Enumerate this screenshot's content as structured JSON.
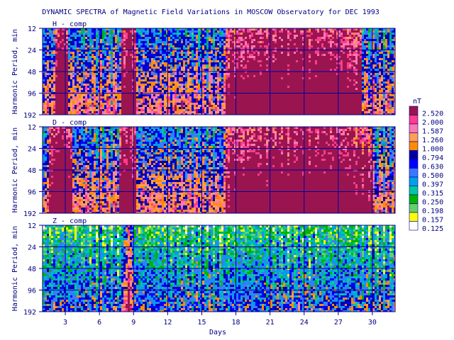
{
  "title": "DYNAMIC SPECTRA of Magnetic Field Variations in MOSCOW Observatory for DEC 1993",
  "chart_data": [
    {
      "type": "heatmap",
      "panel_label": "H - comp",
      "ylabel": "Harmonic Period, min",
      "y_ticks": [
        "12",
        "24",
        "48",
        "96",
        "192"
      ],
      "x_range": [
        1,
        32
      ],
      "scale": "log2 period",
      "storm_days": [
        [
          2.0,
          3.2
        ],
        [
          7.8,
          9.1
        ],
        [
          17,
          29
        ]
      ],
      "intensity": "high"
    },
    {
      "type": "heatmap",
      "panel_label": "D - comp",
      "ylabel": "Harmonic Period, min",
      "y_ticks": [
        "12",
        "24",
        "48",
        "96",
        "192"
      ],
      "x_range": [
        1,
        32
      ],
      "scale": "log2 period",
      "storm_days": [
        [
          1.5,
          3.5
        ],
        [
          7.6,
          9.2
        ],
        [
          17,
          30
        ]
      ],
      "intensity": "high"
    },
    {
      "type": "heatmap",
      "panel_label": "Z - comp",
      "ylabel": "Harmonic Period, min",
      "y_ticks": [
        "12",
        "24",
        "48",
        "96",
        "192"
      ],
      "x_range": [
        1,
        32
      ],
      "scale": "log2 period",
      "storm_days": [
        [
          8.0,
          8.9
        ]
      ],
      "intensity": "low"
    }
  ],
  "x_axis": {
    "label": "Days",
    "ticks": [
      "3",
      "6",
      "9",
      "12",
      "15",
      "18",
      "21",
      "24",
      "27",
      "30"
    ],
    "tick_values": [
      3,
      6,
      9,
      12,
      15,
      18,
      21,
      24,
      27,
      30
    ]
  },
  "legend": {
    "unit": "nT",
    "levels": [
      {
        "value": "2.520",
        "color": "#9a1550"
      },
      {
        "value": "2.000",
        "color": "#ff3c8c"
      },
      {
        "value": "1.587",
        "color": "#ff78b4"
      },
      {
        "value": "1.260",
        "color": "#ffa050"
      },
      {
        "value": "1.000",
        "color": "#ff8c00"
      },
      {
        "value": "0.794",
        "color": "#0000a0"
      },
      {
        "value": "0.630",
        "color": "#0000ff"
      },
      {
        "value": "0.500",
        "color": "#3c78ff"
      },
      {
        "value": "0.397",
        "color": "#00a0e6"
      },
      {
        "value": "0.315",
        "color": "#00c8a0"
      },
      {
        "value": "0.250",
        "color": "#00b400"
      },
      {
        "value": "0.198",
        "color": "#64d264"
      },
      {
        "value": "0.157",
        "color": "#ffff00"
      },
      {
        "value": "0.125",
        "color": "#ffffff"
      }
    ]
  },
  "colors": {
    "gridline": "#0000a0",
    "text": "#000080"
  }
}
